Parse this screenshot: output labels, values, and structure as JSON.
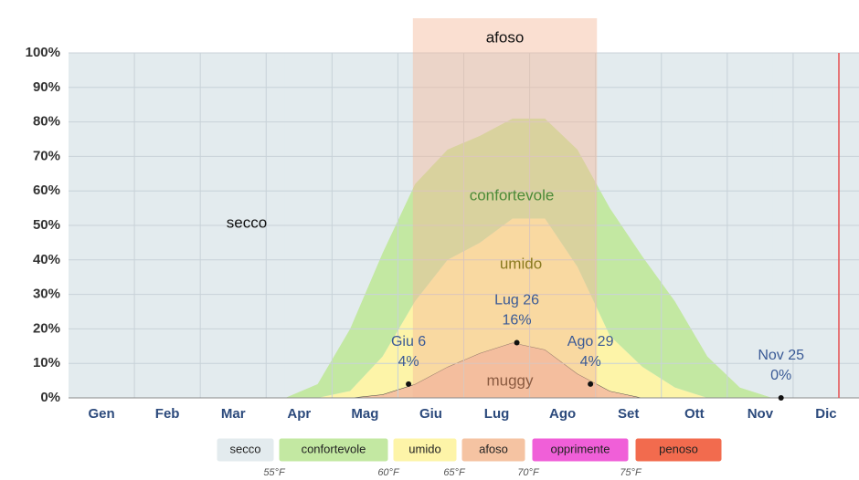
{
  "chart_data": {
    "type": "stacked_area",
    "categories": [
      "Gen",
      "Feb",
      "Mar",
      "Apr",
      "Mag",
      "Giu",
      "Lug",
      "Ago",
      "Set",
      "Ott",
      "Nov",
      "Dic"
    ],
    "xlim": [
      0,
      365
    ],
    "x": [
      100,
      115,
      130,
      145,
      160,
      175,
      190,
      205,
      220,
      235,
      250,
      265,
      280,
      295,
      310,
      325
    ],
    "series": [
      {
        "name": "penoso",
        "color": "#f26b4e",
        "values": [
          0,
          0,
          0,
          0,
          0,
          0,
          0,
          0,
          0,
          0,
          0,
          0,
          0,
          0,
          0,
          0
        ]
      },
      {
        "name": "opprimente",
        "color": "#f05fd8",
        "values": [
          0,
          0,
          0,
          0,
          0,
          0,
          0,
          0,
          0,
          0,
          0,
          0,
          0,
          0,
          0,
          0
        ]
      },
      {
        "name": "afoso",
        "color": "#f5c3a2",
        "values": [
          0,
          0,
          0,
          1,
          4,
          9,
          13,
          16,
          14,
          7,
          2,
          0,
          0,
          0,
          0,
          0
        ]
      },
      {
        "name": "umido",
        "color": "#fdf4a8",
        "values": [
          0,
          0,
          2,
          11,
          24,
          31,
          32,
          36,
          38,
          31,
          16,
          9,
          3,
          0,
          0,
          0
        ]
      },
      {
        "name": "confortevole",
        "color": "#c3e8a2",
        "values": [
          0,
          4,
          18,
          30,
          34,
          32,
          31,
          29,
          29,
          34,
          37,
          32,
          25,
          12,
          3,
          0
        ]
      },
      {
        "name": "secco",
        "color": "#e3ebee",
        "values": [
          100,
          96,
          80,
          58,
          38,
          28,
          24,
          19,
          19,
          28,
          45,
          59,
          72,
          88,
          97,
          100
        ]
      }
    ],
    "ylim": [
      0,
      100
    ],
    "yticks": [
      {
        "value": 0,
        "label": "0%"
      },
      {
        "value": 10,
        "label": "10%"
      },
      {
        "value": 20,
        "label": "20%"
      },
      {
        "value": 30,
        "label": "30%"
      },
      {
        "value": 40,
        "label": "40%"
      },
      {
        "value": 50,
        "label": "50%"
      },
      {
        "value": 60,
        "label": "60%"
      },
      {
        "value": 70,
        "label": "70%"
      },
      {
        "value": 80,
        "label": "80%"
      },
      {
        "value": 90,
        "label": "90%"
      },
      {
        "value": 100,
        "label": "100%"
      }
    ],
    "grid": true,
    "band": {
      "label": "afoso",
      "x": [
        159,
        244
      ]
    },
    "annotations": [
      "secco",
      "confortevole",
      "umido",
      "muggy"
    ],
    "points": [
      {
        "label": "Giu 6",
        "x": 157,
        "value": 4,
        "value_label": "4%"
      },
      {
        "label": "Lug 26",
        "x": 207,
        "value": 16,
        "value_label": "16%"
      },
      {
        "label": "Ago 29",
        "x": 241,
        "value": 4,
        "value_label": "4%"
      },
      {
        "label": "Nov 25",
        "x": 329,
        "value": 0,
        "value_label": "0%"
      }
    ],
    "scale_labels": [
      "55°F",
      "60°F",
      "65°F",
      "70°F",
      "75°F"
    ]
  }
}
